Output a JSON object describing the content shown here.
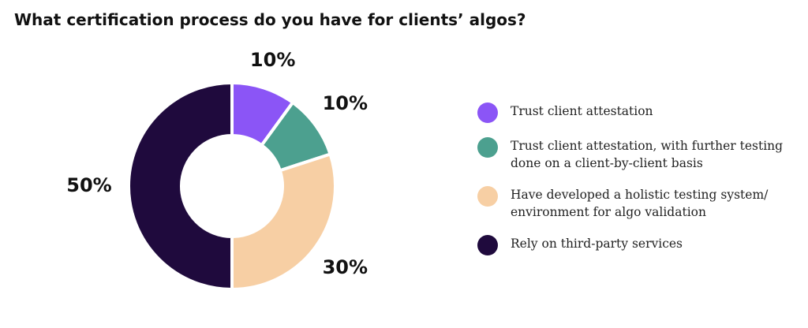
{
  "chart_data": {
    "type": "donut",
    "title": "What certification process do you have for clients’ algos?",
    "categories": [
      "Trust client attestation",
      "Trust client attestation, with further testing done on a client-by-client basis",
      "Have developed a holistic testing system/ environment for algo validation",
      "Rely on third-party services"
    ],
    "values": [
      10,
      10,
      30,
      50
    ],
    "value_labels": [
      "10%",
      "10%",
      "30%",
      "50%"
    ],
    "colors": [
      "#8b55f6",
      "#4ca08f",
      "#f7cfa4",
      "#1f0a3d"
    ],
    "legend": "right"
  }
}
